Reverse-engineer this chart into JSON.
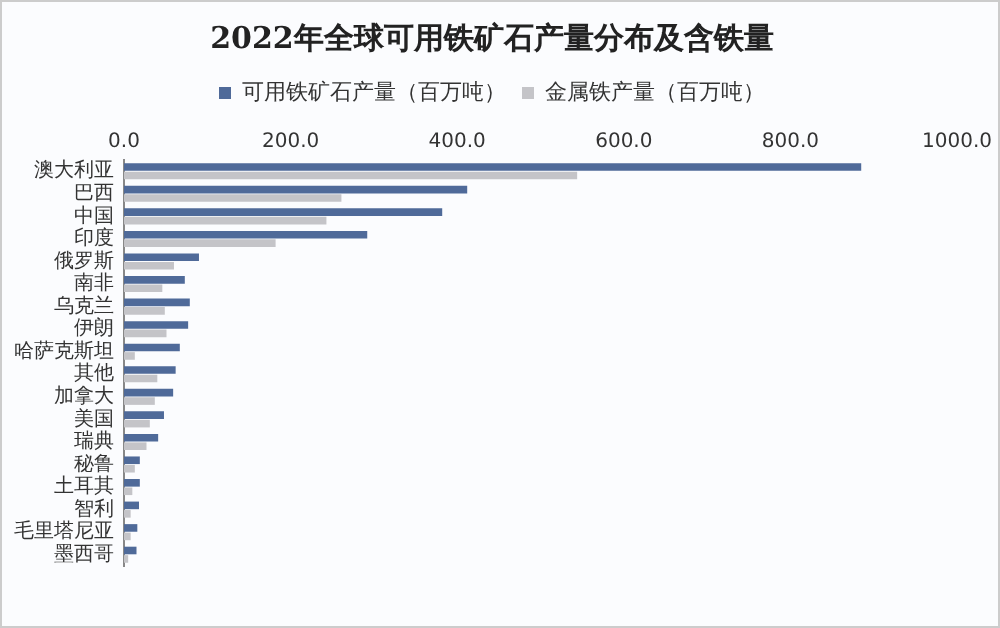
{
  "chart_data": {
    "type": "bar",
    "orientation": "horizontal",
    "title": "2022年全球可用铁矿石产量分布及含铁量",
    "categories": [
      "澳大利亚",
      "巴西",
      "中国",
      "印度",
      "俄罗斯",
      "南非",
      "乌克兰",
      "伊朗",
      "哈萨克斯坦",
      "其他",
      "加拿大",
      "美国",
      "瑞典",
      "秘鲁",
      "土耳其",
      "智利",
      "毛里塔尼亚",
      "墨西哥"
    ],
    "series": [
      {
        "name": "可用铁矿石产量（百万吨）",
        "color": "#4f6a99",
        "values": [
          885,
          412,
          382,
          292,
          90,
          73,
          79,
          77,
          67,
          62,
          59,
          48,
          41,
          19,
          19,
          18,
          16,
          15
        ]
      },
      {
        "name": "金属铁产量（百万吨）",
        "color": "#c4c4c8",
        "values": [
          544,
          261,
          243,
          182,
          60,
          46,
          49,
          51,
          13,
          40,
          37,
          31,
          27,
          13,
          10,
          8,
          8,
          5
        ]
      }
    ],
    "xlim": [
      0,
      1000
    ],
    "xticks": [
      {
        "value": 0,
        "label": "0.0"
      },
      {
        "value": 200,
        "label": "200.0"
      },
      {
        "value": 400,
        "label": "400.0"
      },
      {
        "value": 600,
        "label": "600.0"
      },
      {
        "value": 800,
        "label": "800.0"
      },
      {
        "value": 1000,
        "label": "1000.0"
      }
    ],
    "grid": false,
    "legend": "top"
  }
}
